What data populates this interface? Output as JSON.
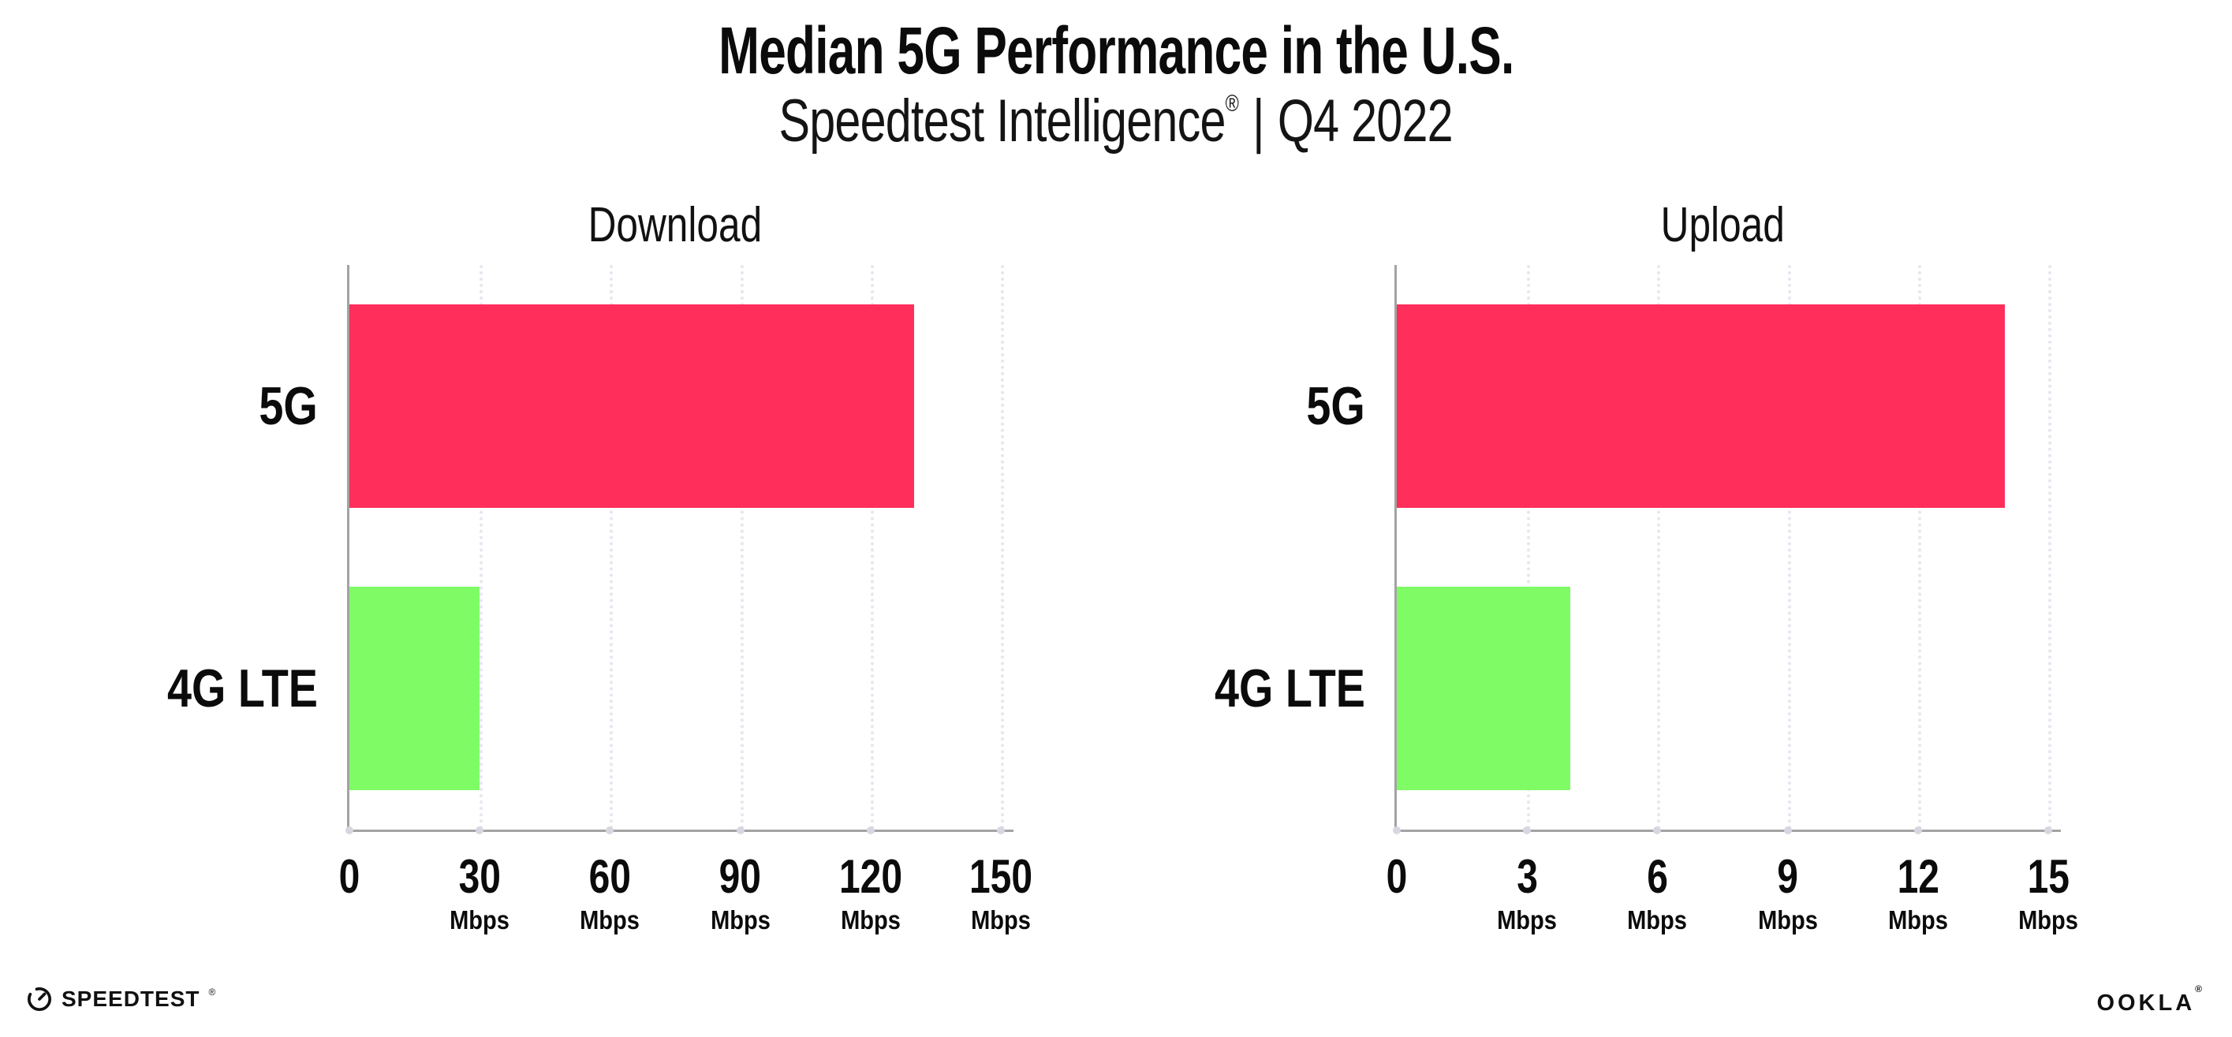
{
  "header": {
    "title": "Median 5G Performance in the U.S.",
    "subtitle_brand": "Speedtest Intelligence",
    "subtitle_reg": "®",
    "subtitle_sep": "|",
    "subtitle_period": "Q4 2022"
  },
  "colors": {
    "bar_5g": "#FF2E5B",
    "bar_4g_lte": "#7FFB66",
    "axis": "#A3A3A3",
    "gridline": "#E6E6F0",
    "text": "#0B0B0B"
  },
  "chart_data": [
    {
      "type": "bar",
      "orientation": "horizontal",
      "title": "Download",
      "categories": [
        "5G",
        "4G LTE"
      ],
      "values": [
        130,
        30
      ],
      "unit": "Mbps",
      "xlim": [
        0,
        150
      ],
      "xticks": [
        0,
        30,
        60,
        90,
        120,
        150
      ],
      "bar_colors": [
        "#FF2E5B",
        "#7FFB66"
      ],
      "grid": "dotted-vertical",
      "legend": "none"
    },
    {
      "type": "bar",
      "orientation": "horizontal",
      "title": "Upload",
      "categories": [
        "5G",
        "4G LTE"
      ],
      "values": [
        14,
        4
      ],
      "unit": "Mbps",
      "xlim": [
        0,
        15
      ],
      "xticks": [
        0,
        3,
        6,
        9,
        12,
        15
      ],
      "bar_colors": [
        "#FF2E5B",
        "#7FFB66"
      ],
      "grid": "dotted-vertical",
      "legend": "none"
    }
  ],
  "footer": {
    "speedtest": "SPEEDTEST",
    "speedtest_reg": "®",
    "ookla": "OOKLA",
    "ookla_reg": "®"
  }
}
